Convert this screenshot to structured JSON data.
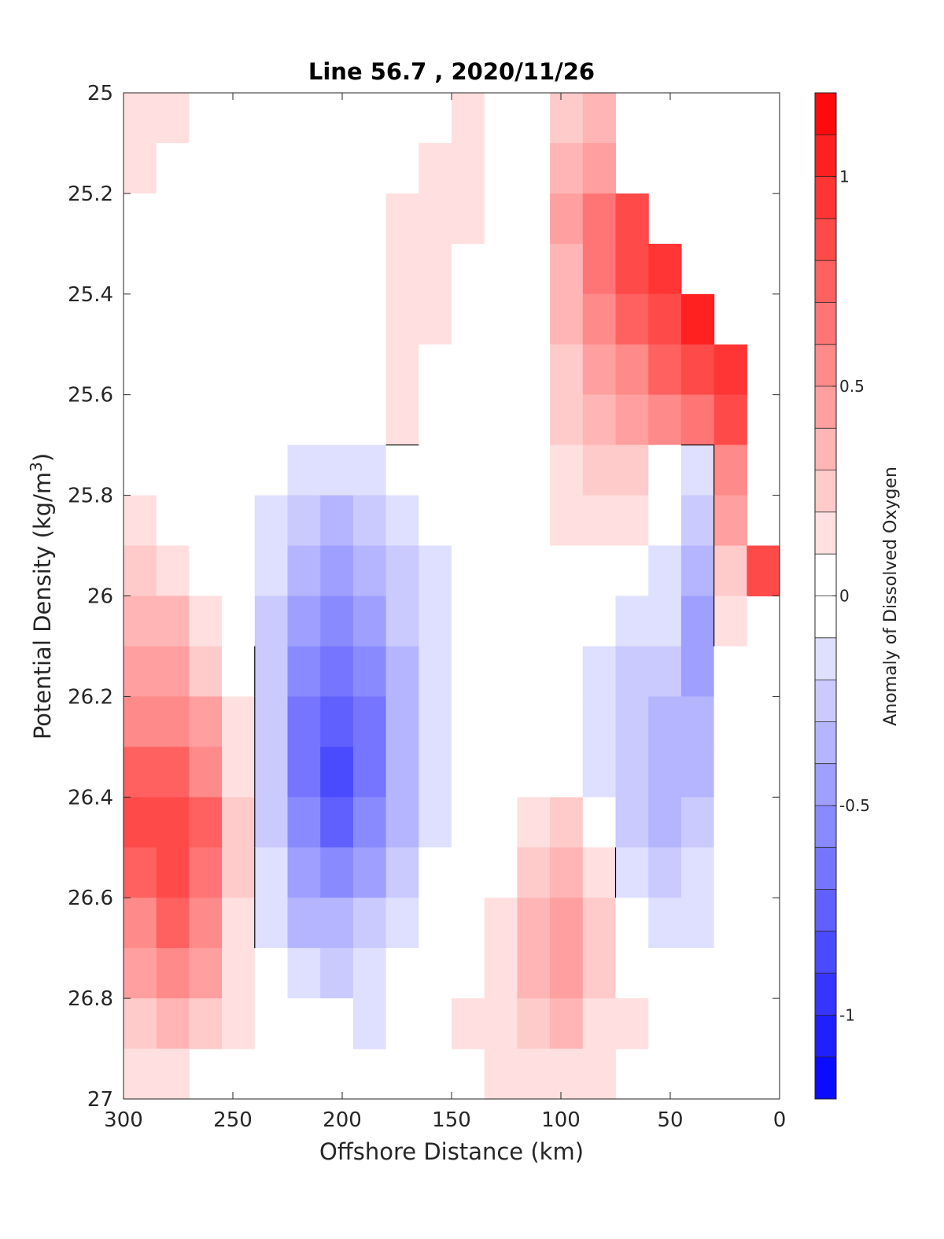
{
  "chart_data": {
    "type": "heatmap",
    "title": "Line 56.7 , 2020/11/26",
    "xlabel": "Offshore Distance (km)",
    "ylabel": {
      "prefix": "Potential Density (kg/m",
      "superscript": "3",
      "suffix": ")"
    },
    "colorbar_label": "Anomaly of Dissolved Oxygen",
    "xlim": [
      300,
      0
    ],
    "ylim": [
      27,
      25
    ],
    "x_reversed": true,
    "y_reversed": true,
    "x_ticks": [
      300,
      250,
      200,
      150,
      100,
      50,
      0
    ],
    "x_tick_labels": [
      "300",
      "250",
      "200",
      "150",
      "100",
      "50",
      "0"
    ],
    "y_ticks": [
      25,
      25.2,
      25.4,
      25.6,
      25.8,
      26,
      26.2,
      26.4,
      26.6,
      26.8,
      27
    ],
    "y_tick_labels": [
      "25",
      "25.2",
      "25.4",
      "25.6",
      "25.8",
      "26",
      "26.2",
      "26.4",
      "26.6",
      "26.8",
      "27"
    ],
    "clim": [
      -1.2,
      1.2
    ],
    "contour_step": 0.1,
    "colorbar_ticks": [
      1,
      0.5,
      0,
      -0.5,
      -1
    ],
    "colorbar_tick_labels": [
      "1",
      "0.5",
      "0",
      "-0.5",
      "-1"
    ],
    "colormap": {
      "negative_end": "#0000ff",
      "zero": "#ffffff",
      "positive_end": "#ff0000"
    },
    "zero_contour_color": "#000000",
    "x_grid": [
      300,
      285,
      270,
      255,
      240,
      225,
      210,
      195,
      180,
      165,
      150,
      135,
      120,
      105,
      90,
      75,
      60,
      45,
      30,
      15
    ],
    "y_grid": [
      25.0,
      25.1,
      25.2,
      25.3,
      25.4,
      25.5,
      25.6,
      25.7,
      25.8,
      25.9,
      26.0,
      26.1,
      26.2,
      26.3,
      26.4,
      26.5,
      26.6,
      26.7,
      26.8,
      26.9
    ],
    "anomaly_values": [
      [
        0.15,
        0.1,
        0.0,
        0.0,
        0.0,
        0.0,
        0.0,
        0.0,
        0.0,
        0.05,
        0.12,
        0.0,
        0.0,
        0.25,
        0.35,
        null,
        null,
        null,
        null,
        null
      ],
      [
        0.1,
        0.05,
        0.0,
        0.0,
        0.0,
        0.0,
        0.0,
        0.0,
        0.05,
        0.1,
        0.1,
        0.0,
        0.0,
        0.35,
        0.45,
        null,
        null,
        null,
        null,
        null
      ],
      [
        0.05,
        0.0,
        0.0,
        0.0,
        0.0,
        0.0,
        0.0,
        0.0,
        0.1,
        0.15,
        0.1,
        0.0,
        0.0,
        0.4,
        0.65,
        0.85,
        null,
        null,
        null,
        null
      ],
      [
        0.0,
        0.0,
        0.0,
        0.0,
        0.0,
        0.0,
        0.0,
        0.0,
        0.1,
        0.15,
        0.05,
        0.0,
        0.0,
        0.35,
        0.6,
        0.8,
        0.9,
        null,
        null,
        null
      ],
      [
        0.0,
        0.0,
        0.0,
        0.0,
        0.0,
        0.0,
        0.0,
        0.05,
        0.15,
        0.1,
        0.0,
        0.0,
        0.0,
        0.3,
        0.5,
        0.7,
        0.85,
        1.0,
        null,
        null
      ],
      [
        0.0,
        0.0,
        0.0,
        0.0,
        0.0,
        0.0,
        0.0,
        0.05,
        0.15,
        0.05,
        0.0,
        0.0,
        0.0,
        0.25,
        0.4,
        0.55,
        0.7,
        0.85,
        0.95,
        null
      ],
      [
        0.0,
        0.0,
        0.0,
        0.0,
        0.0,
        0.0,
        0.0,
        0.0,
        0.1,
        0.0,
        0.0,
        0.0,
        0.0,
        0.2,
        0.3,
        0.4,
        0.5,
        0.6,
        0.8,
        null
      ],
      [
        0.05,
        0.0,
        0.0,
        0.0,
        -0.05,
        -0.1,
        -0.1,
        -0.1,
        -0.05,
        0.0,
        0.0,
        0.0,
        0.0,
        0.15,
        0.2,
        0.25,
        0.0,
        -0.1,
        0.5,
        null
      ],
      [
        0.1,
        0.05,
        0.0,
        0.0,
        -0.1,
        -0.25,
        -0.3,
        -0.25,
        -0.15,
        -0.05,
        0.0,
        0.0,
        0.0,
        0.1,
        0.15,
        0.1,
        0.0,
        -0.25,
        0.4,
        null
      ],
      [
        0.2,
        0.15,
        0.05,
        0.0,
        -0.15,
        -0.35,
        -0.45,
        -0.35,
        -0.2,
        -0.1,
        0.0,
        0.0,
        0.0,
        0.05,
        0.0,
        0.0,
        -0.1,
        -0.35,
        0.2,
        0.8
      ],
      [
        0.3,
        0.3,
        0.15,
        0.0,
        -0.2,
        -0.45,
        -0.55,
        -0.45,
        -0.25,
        -0.1,
        0.0,
        0.0,
        0.0,
        0.0,
        -0.05,
        -0.1,
        -0.15,
        -0.4,
        0.1,
        null
      ],
      [
        0.4,
        0.4,
        0.25,
        0.05,
        -0.25,
        -0.55,
        -0.65,
        -0.55,
        -0.3,
        -0.15,
        0.0,
        0.0,
        0.0,
        0.0,
        -0.15,
        -0.2,
        -0.25,
        -0.4,
        0.0,
        null
      ],
      [
        0.55,
        0.55,
        0.4,
        0.1,
        -0.25,
        -0.6,
        -0.75,
        -0.6,
        -0.35,
        -0.15,
        0.0,
        0.0,
        0.0,
        0.0,
        -0.15,
        -0.25,
        -0.3,
        -0.35,
        -0.05,
        null
      ],
      [
        0.7,
        0.7,
        0.55,
        0.15,
        -0.25,
        -0.6,
        -0.8,
        -0.6,
        -0.35,
        -0.1,
        0.0,
        0.0,
        0.0,
        0.0,
        -0.1,
        -0.25,
        -0.35,
        -0.3,
        0.0,
        null
      ],
      [
        0.8,
        0.85,
        0.7,
        0.2,
        -0.2,
        -0.55,
        -0.7,
        -0.55,
        -0.3,
        -0.1,
        0.0,
        0.0,
        0.15,
        0.2,
        0.0,
        -0.2,
        -0.3,
        -0.2,
        0.0,
        null
      ],
      [
        0.75,
        0.8,
        0.65,
        0.2,
        -0.15,
        -0.45,
        -0.55,
        -0.4,
        -0.2,
        -0.05,
        0.0,
        0.05,
        0.25,
        0.3,
        0.1,
        -0.1,
        -0.25,
        -0.15,
        0.0,
        null
      ],
      [
        0.55,
        0.7,
        0.55,
        0.15,
        -0.1,
        -0.3,
        -0.35,
        -0.25,
        -0.1,
        0.0,
        0.0,
        0.1,
        0.35,
        0.45,
        0.2,
        0.0,
        -0.15,
        -0.1,
        0.0,
        null
      ],
      [
        0.4,
        0.55,
        0.4,
        0.1,
        0.0,
        -0.15,
        -0.2,
        -0.15,
        -0.05,
        0.0,
        0.05,
        0.15,
        0.35,
        0.45,
        0.2,
        0.0,
        -0.05,
        -0.05,
        0.0,
        null
      ],
      [
        0.25,
        0.3,
        0.25,
        0.1,
        0.0,
        -0.05,
        -0.05,
        -0.1,
        0.0,
        0.0,
        0.1,
        0.15,
        0.25,
        0.3,
        0.15,
        0.1,
        0.0,
        0.0,
        0.0,
        null
      ],
      [
        0.1,
        0.1,
        null,
        null,
        null,
        null,
        null,
        null,
        null,
        null,
        null,
        0.1,
        0.15,
        0.15,
        0.1,
        null,
        null,
        null,
        null,
        null
      ]
    ]
  }
}
